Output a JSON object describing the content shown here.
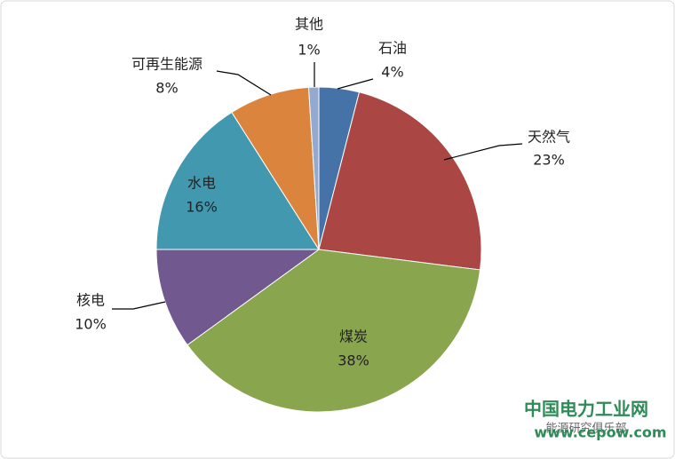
{
  "chart_data": {
    "type": "pie",
    "categories": [
      "石油",
      "天然气",
      "煤炭",
      "核电",
      "水电",
      "可再生能源",
      "其他"
    ],
    "values": [
      4,
      23,
      38,
      10,
      16,
      8,
      1
    ],
    "value_labels": [
      "4%",
      "23%",
      "38%",
      "10%",
      "16%",
      "8%",
      "1%"
    ],
    "colors": [
      "#4572a7",
      "#aa4643",
      "#89a54e",
      "#71588f",
      "#4198af",
      "#db843d",
      "#93a9cf"
    ]
  },
  "watermark": {
    "title": "中国电力工业网",
    "url": "www.cepow.com",
    "account": "能源研究俱乐部"
  }
}
